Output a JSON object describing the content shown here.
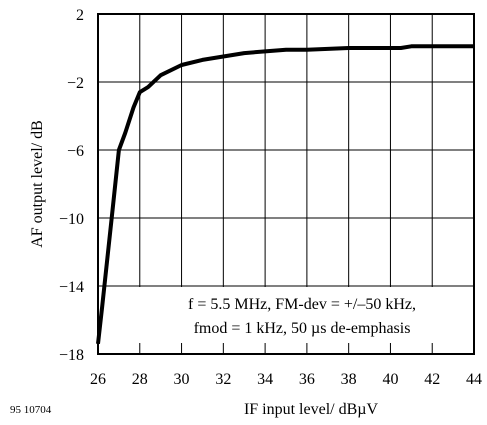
{
  "chart_data": {
    "type": "line",
    "xlabel": "IF input level/ dBµV",
    "ylabel": "AF output level/ dB",
    "xlim": [
      26,
      44
    ],
    "ylim": [
      -18,
      2
    ],
    "x_ticks": [
      26,
      28,
      30,
      32,
      34,
      36,
      38,
      40,
      42,
      44
    ],
    "y_ticks": [
      2,
      -2,
      -6,
      -10,
      -14,
      -18
    ],
    "x_tick_labels": [
      "26",
      "28",
      "30",
      "32",
      "34",
      "36",
      "38",
      "40",
      "42",
      "44"
    ],
    "y_tick_labels": [
      "2",
      "−2",
      "−6",
      "−10",
      "−14",
      "−18"
    ],
    "grid": true,
    "series": [
      {
        "x": [
          26.0,
          26.2,
          26.7,
          27.0,
          27.3,
          27.7,
          28.0,
          28.4,
          29.0,
          30.0,
          31.0,
          32.0,
          33.0,
          34.0,
          35.0,
          36.0,
          37.0,
          38.0,
          39.0,
          40.0,
          40.5,
          41.0,
          42.0,
          43.0,
          44.0
        ],
        "y": [
          -17.4,
          -15.2,
          -9.5,
          -6.0,
          -5.0,
          -3.5,
          -2.6,
          -2.3,
          -1.6,
          -1.0,
          -0.7,
          -0.5,
          -0.3,
          -0.2,
          -0.1,
          -0.1,
          -0.05,
          0.0,
          0.0,
          0.0,
          0.0,
          0.1,
          0.1,
          0.1,
          0.1
        ]
      }
    ],
    "annotation": {
      "line1": "f = 5.5 MHz, FM-dev = +/–50 kHz,",
      "line2": "fmod = 1 kHz, 50 µs de-emphasis"
    },
    "figure_id": "95 10704"
  }
}
